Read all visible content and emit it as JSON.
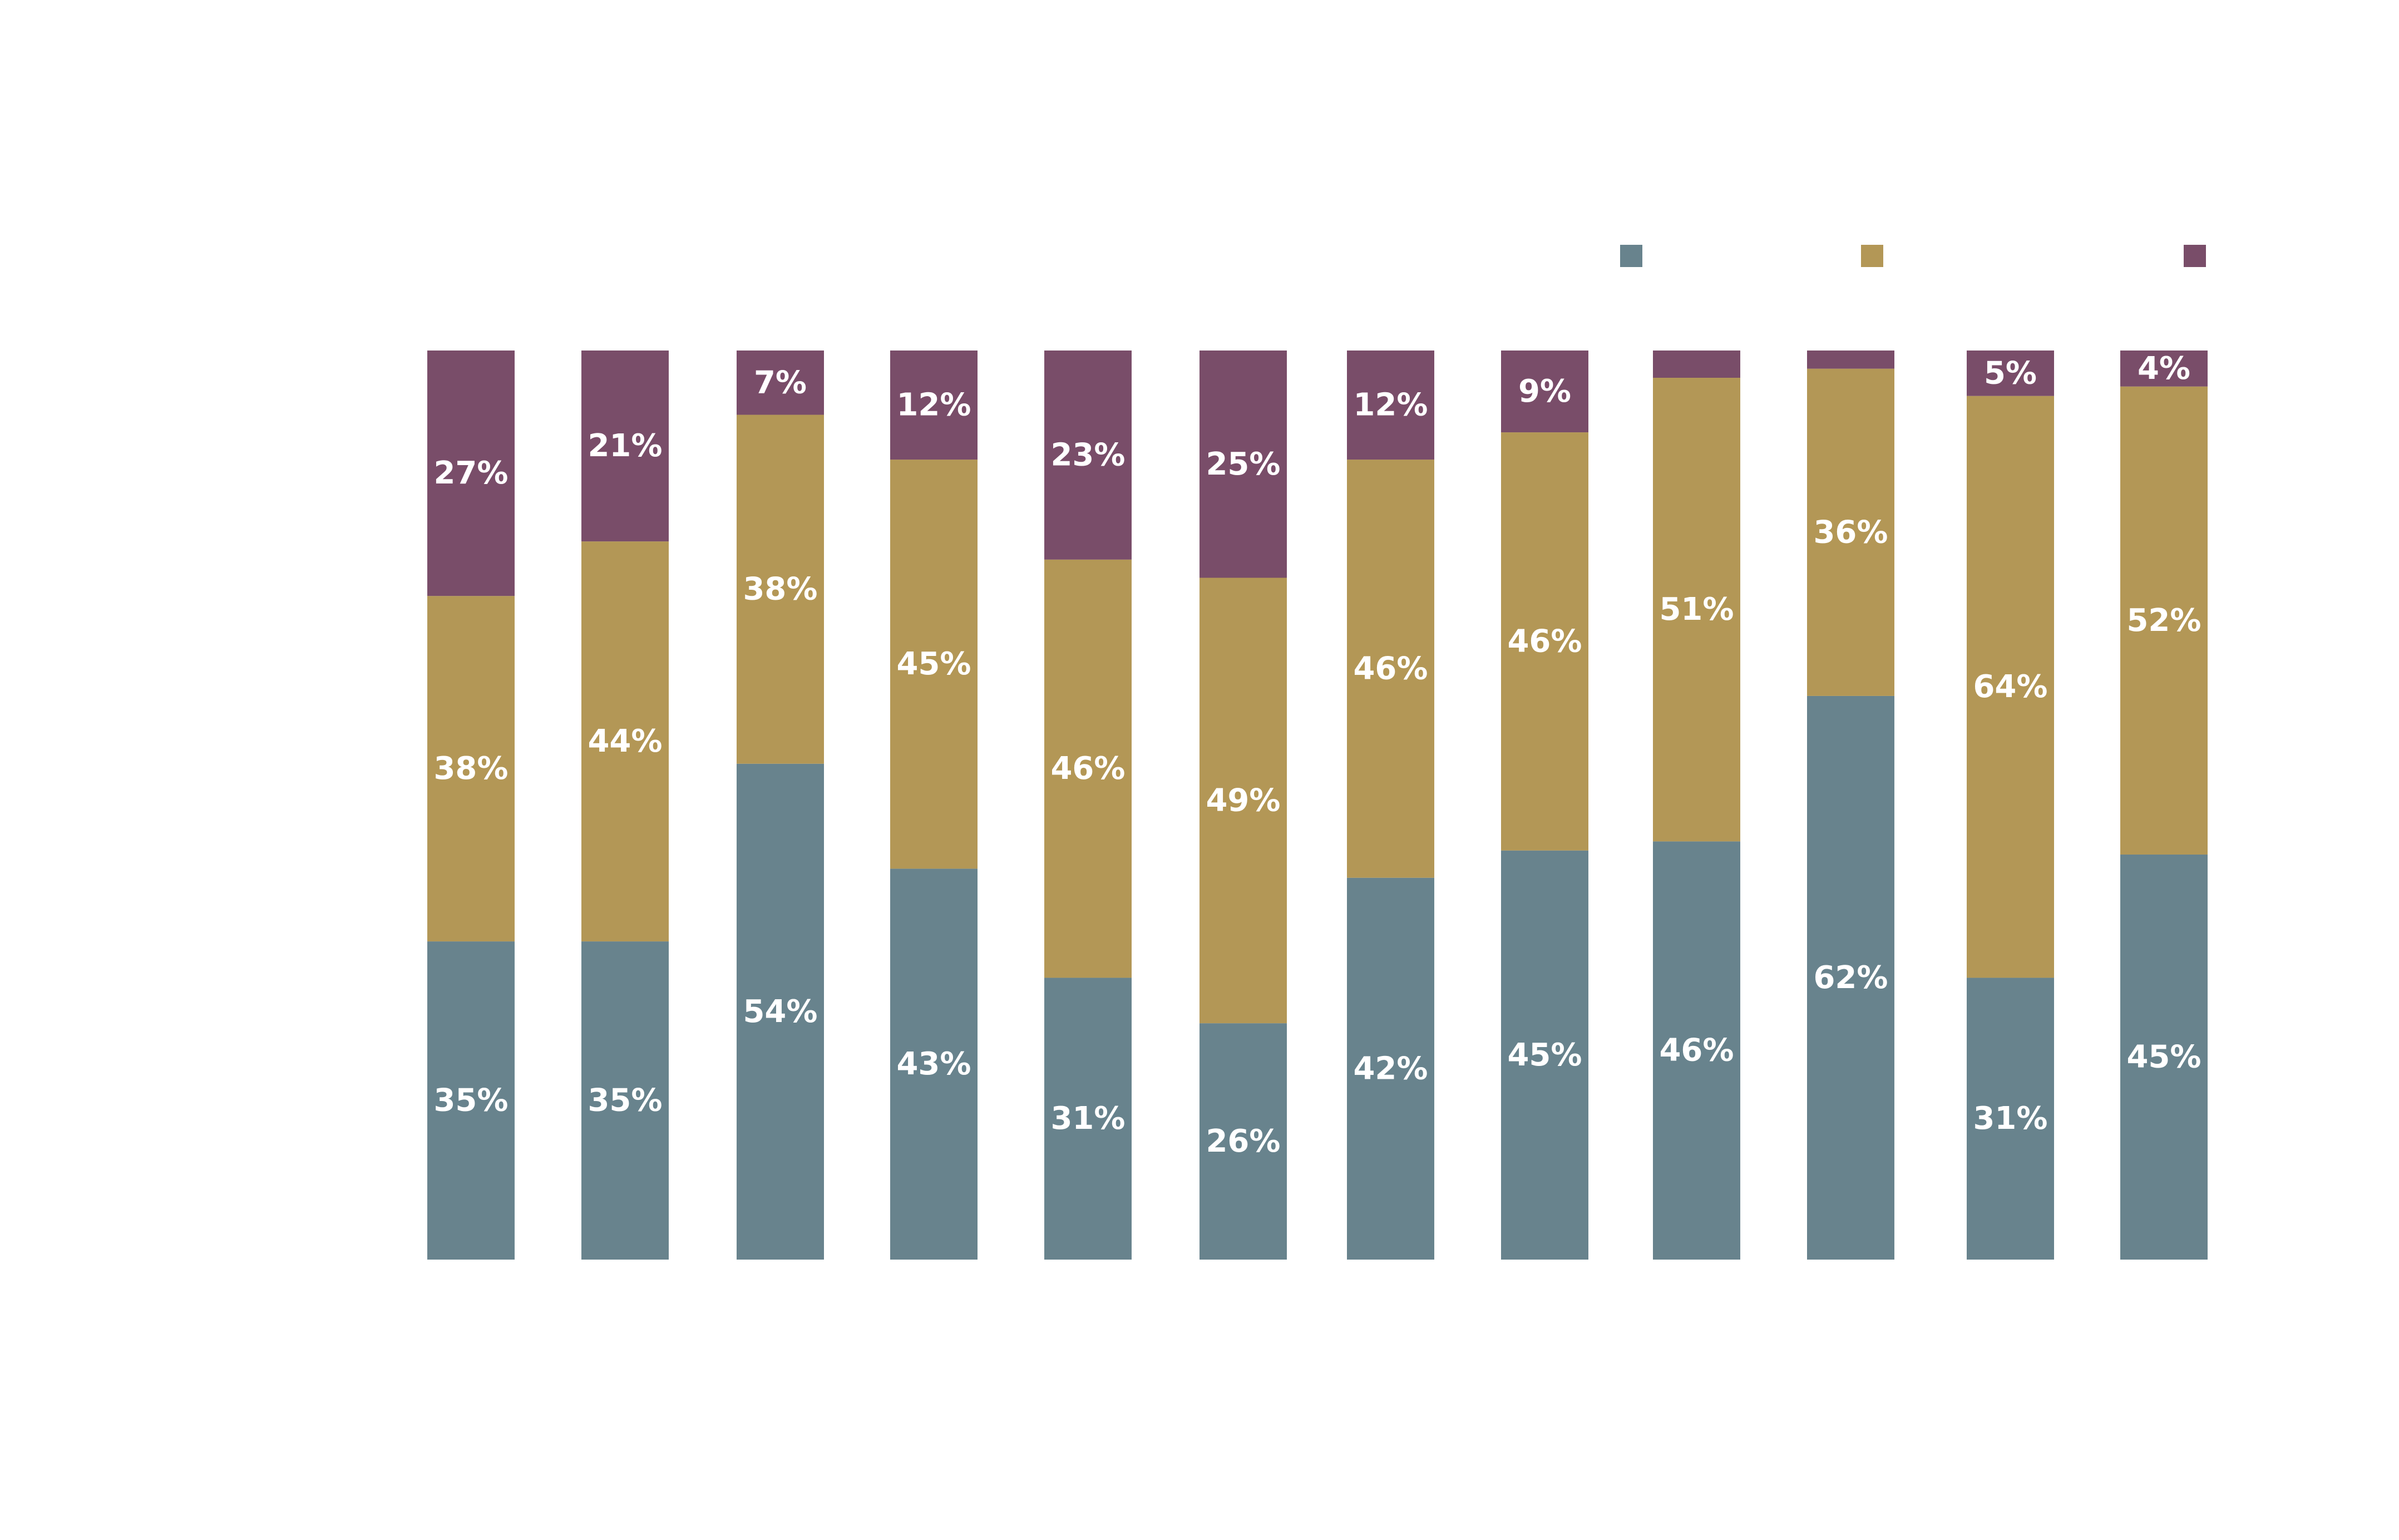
{
  "chart_data": {
    "type": "bar",
    "stacked": true,
    "normalized_percent": true,
    "title": "",
    "xlabel": "",
    "ylabel": "",
    "ylim": [
      0,
      100
    ],
    "grid": false,
    "legend_placement": "top-right",
    "categories": [
      "",
      "",
      "",
      "",
      "",
      "",
      "",
      "",
      "",
      "",
      "",
      ""
    ],
    "series": [
      {
        "color": "#68838d",
        "values": [
          35,
          35,
          54,
          43,
          31,
          26,
          42,
          45,
          46,
          62,
          31,
          45
        ],
        "labels": [
          "35%",
          "35%",
          "54%",
          "43%",
          "31%",
          "26%",
          "42%",
          "45%",
          "46%",
          "62%",
          "31%",
          "45%"
        ]
      },
      {
        "color": "#b39756",
        "values": [
          38,
          44,
          38,
          45,
          46,
          49,
          46,
          46,
          51,
          36,
          64,
          52
        ],
        "labels": [
          "38%",
          "44%",
          "38%",
          "45%",
          "46%",
          "49%",
          "46%",
          "46%",
          "51%",
          "36%",
          "64%",
          "52%"
        ]
      },
      {
        "color": "#794d69",
        "values": [
          27,
          21,
          7,
          12,
          23,
          25,
          12,
          9,
          3,
          2,
          5,
          4
        ],
        "labels": [
          "27%",
          "21%",
          "7%",
          "12%",
          "23%",
          "25%",
          "12%",
          "9%",
          "",
          "",
          "5%",
          "4%"
        ]
      }
    ]
  }
}
